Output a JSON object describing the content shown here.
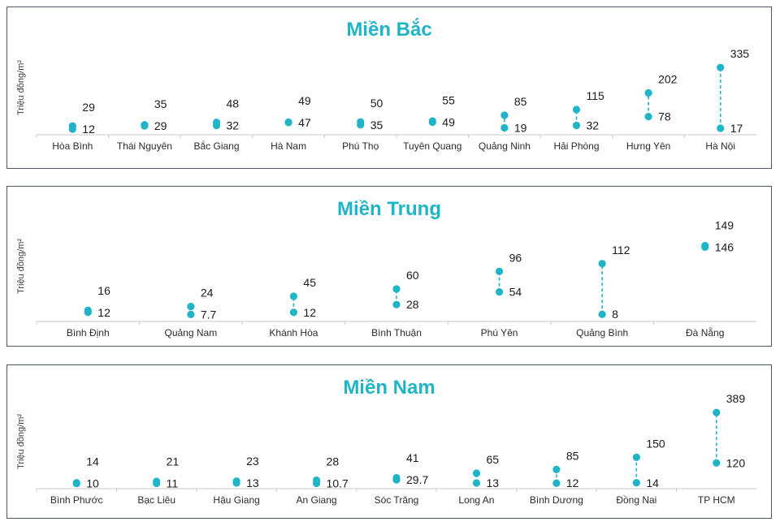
{
  "chart_data": [
    {
      "type": "dumbbell",
      "title": "Miền Bắc",
      "ylabel": "Triệu đồng/m²",
      "ylim": [
        0,
        340
      ],
      "categories": [
        "Hòa Bình",
        "Thái Nguyên",
        "Bắc Giang",
        "Hà Nam",
        "Phú Thọ",
        "Tuyên Quang",
        "Quảng Ninh",
        "Hải Phòng",
        "Hưng Yên",
        "Hà Nội"
      ],
      "low_labels": [
        "12",
        "29",
        "32",
        "47",
        "35",
        "49",
        "19",
        "32",
        "78",
        "17"
      ],
      "high_labels": [
        "29",
        "35",
        "48",
        "49",
        "50",
        "55",
        "85",
        "115",
        "202",
        "335"
      ],
      "low": [
        12,
        29,
        32,
        47,
        35,
        49,
        19,
        32,
        78,
        17
      ],
      "high": [
        29,
        35,
        48,
        49,
        50,
        55,
        85,
        115,
        202,
        335
      ],
      "color": "#1fb4c6"
    },
    {
      "type": "dumbbell",
      "title": "Miền Trung",
      "ylabel": "Triệu đồng/m²",
      "ylim": [
        0,
        150
      ],
      "categories": [
        "Bình Định",
        "Quảng Nam",
        "Khánh Hòa",
        "Bình Thuận",
        "Phú Yên",
        "Quảng Bình",
        "Đà Nẵng"
      ],
      "low_labels": [
        "12",
        "7.7",
        "12",
        "28",
        "54",
        "8",
        "146"
      ],
      "high_labels": [
        "16",
        "24",
        "45",
        "60",
        "96",
        "112",
        "149"
      ],
      "low": [
        12,
        7.7,
        12,
        28,
        54,
        8,
        146
      ],
      "high": [
        16,
        24,
        45,
        60,
        96,
        112,
        149
      ],
      "color": "#1fb4c6"
    },
    {
      "type": "dumbbell",
      "title": "Miền Nam",
      "ylabel": "Triệu đồng/m²",
      "ylim": [
        0,
        390
      ],
      "categories": [
        "Bình Phước",
        "Bạc Liêu",
        "Hậu Giang",
        "An Giang",
        "Sóc Trăng",
        "Long An",
        "Bình Dương",
        "Đồng Nai",
        "TP HCM"
      ],
      "low_labels": [
        "10",
        "11",
        "13",
        "10.7",
        "29.7",
        "13",
        "12",
        "14",
        "120"
      ],
      "high_labels": [
        "14",
        "21",
        "23",
        "28",
        "41",
        "65",
        "85",
        "150",
        "389"
      ],
      "low": [
        10,
        11,
        13,
        10.7,
        29.7,
        13,
        12,
        14,
        120
      ],
      "high": [
        14,
        21,
        23,
        28,
        41,
        65,
        85,
        150,
        389
      ],
      "color": "#1fb4c6"
    }
  ]
}
